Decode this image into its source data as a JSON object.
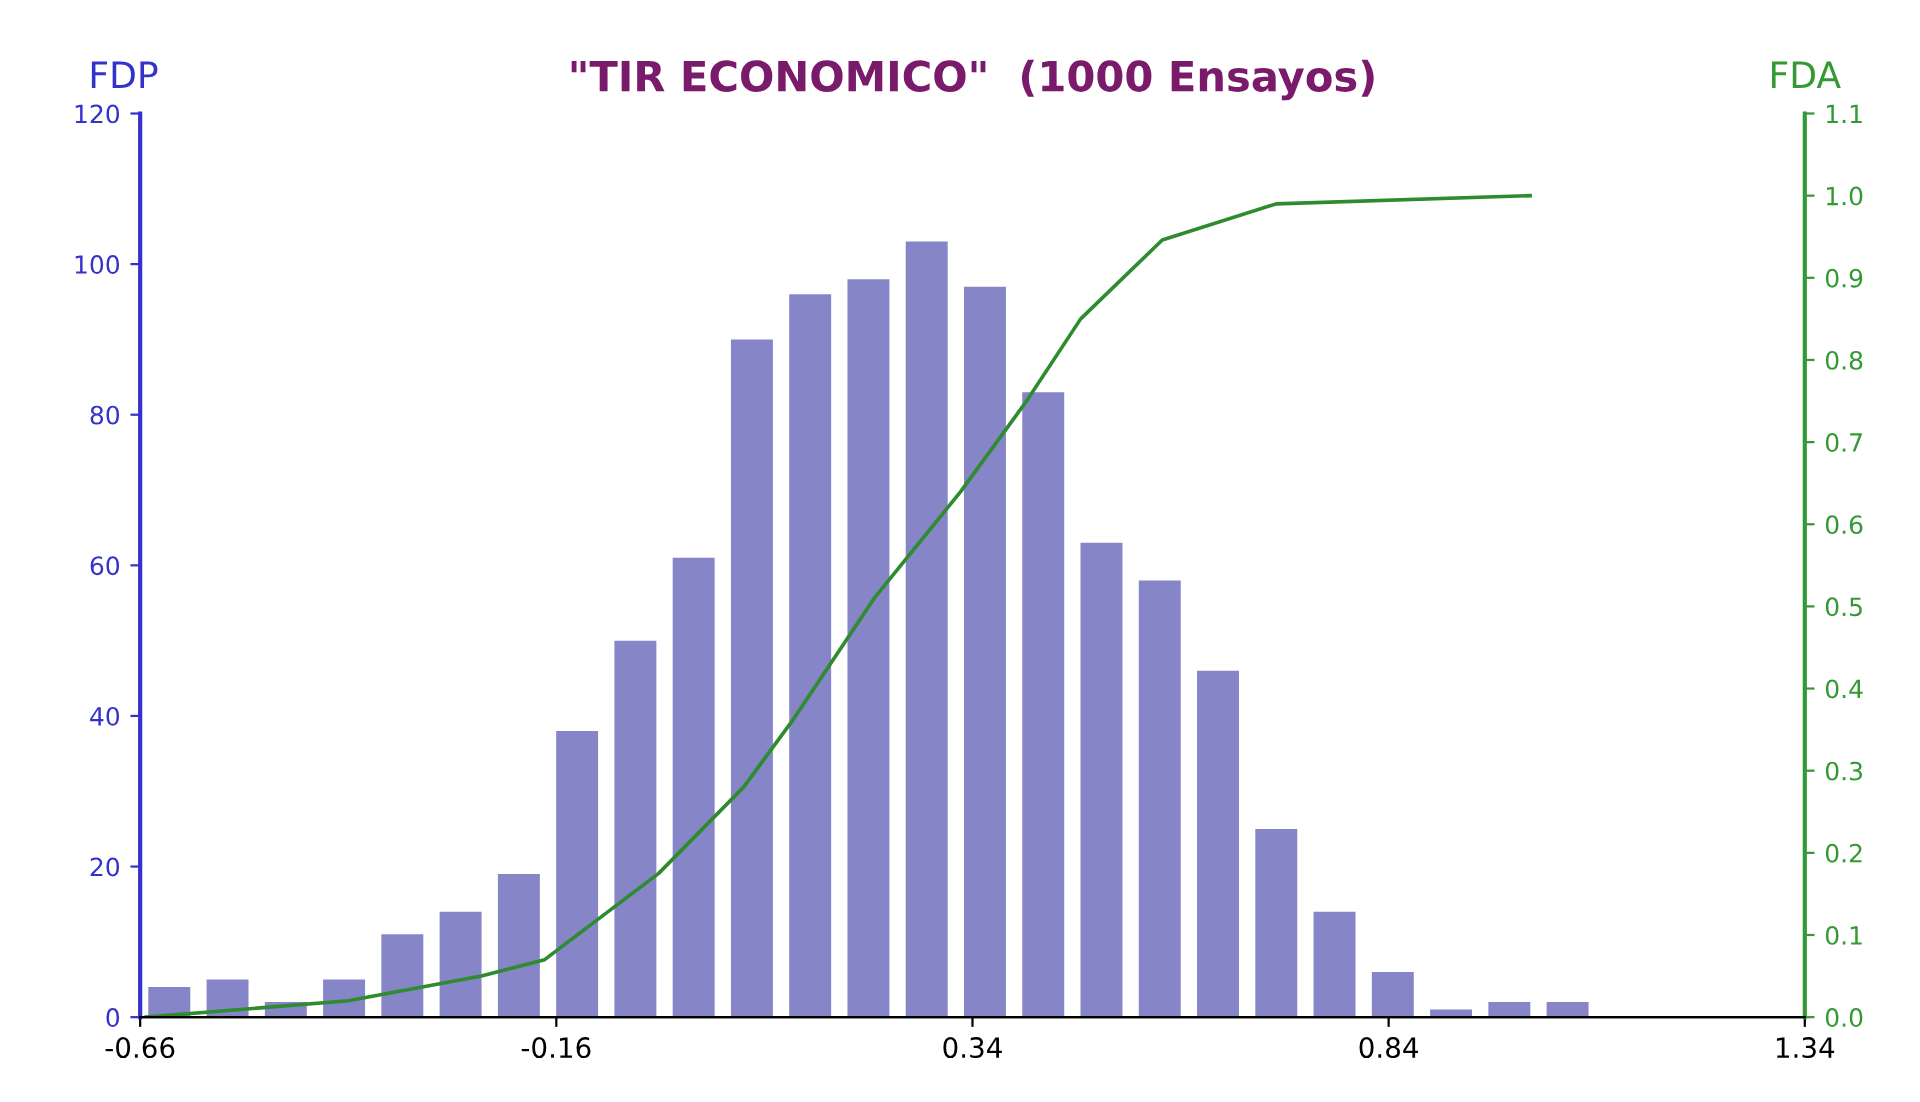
{
  "chart_data": {
    "type": "histogram",
    "title": "\"TIR ECONOMICO\"  (1000 Ensayos)",
    "ylabel": "FDP",
    "y2label": "FDA",
    "bins": [
      -0.66,
      -0.59,
      -0.52,
      -0.45,
      -0.38,
      -0.31,
      -0.24,
      -0.17,
      -0.1,
      -0.03,
      0.04,
      0.11,
      0.18,
      0.25,
      0.32,
      0.39,
      0.46,
      0.53,
      0.6,
      0.67,
      0.74,
      0.81,
      0.88,
      0.95,
      1.02,
      1.09
    ],
    "values": [
      4,
      5,
      2,
      5,
      11,
      14,
      19,
      38,
      50,
      61,
      90,
      96,
      98,
      103,
      97,
      83,
      63,
      58,
      46,
      25,
      14,
      6,
      1,
      2,
      2
    ],
    "color": "#8585c8",
    "series": [
      {
        "type": "line",
        "axis": "y2",
        "color": "#2e8b2e",
        "x": [
          -0.653,
          -0.41,
          -0.25,
          -0.174,
          -0.037,
          0.065,
          0.123,
          0.222,
          0.326,
          0.405,
          0.47,
          0.568,
          0.705,
          1.01
        ],
        "values": [
          0.0,
          0.02,
          0.05,
          0.07,
          0.175,
          0.28,
          0.36,
          0.51,
          0.64,
          0.75,
          0.85,
          0.946,
          0.99,
          1.0
        ]
      }
    ],
    "xlim": [
      -0.66,
      1.34
    ],
    "xticks": [
      -0.66,
      -0.16,
      0.34,
      0.84,
      1.34
    ],
    "ylim": [
      0,
      120
    ],
    "yticks": [
      0,
      20,
      40,
      60,
      80,
      100,
      120
    ],
    "y2lim": [
      0,
      1.1
    ],
    "y2ticks": [
      {
        "value": 0,
        "label": "0.0"
      },
      {
        "value": 0.1,
        "label": "0.1"
      },
      {
        "value": 0.2,
        "label": "0.2"
      },
      {
        "value": 0.3,
        "label": "0.3"
      },
      {
        "value": 0.4,
        "label": "0.4"
      },
      {
        "value": 0.5,
        "label": "0.5"
      },
      {
        "value": 0.6,
        "label": "0.6"
      },
      {
        "value": 0.7,
        "label": "0.7"
      },
      {
        "value": 0.8,
        "label": "0.8"
      },
      {
        "value": 0.9,
        "label": "0.9"
      },
      {
        "value": 1.0,
        "label": "1.0"
      },
      {
        "value": 1.1,
        "label": "1.1"
      }
    ],
    "grid": false,
    "legend": false,
    "marker": "none",
    "line_style": "solid"
  }
}
